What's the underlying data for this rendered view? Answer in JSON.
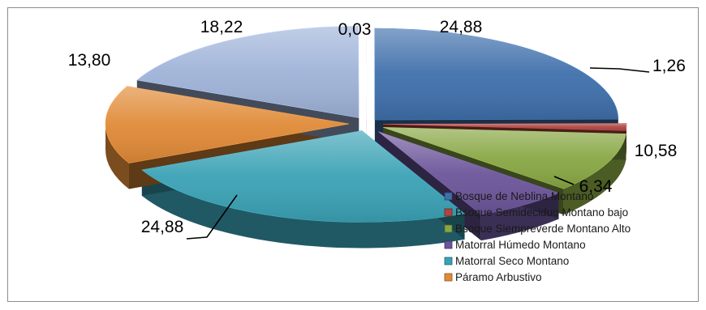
{
  "chart_data": {
    "type": "pie",
    "style": "exploded 3d pie",
    "title": "",
    "legend_position": "bottom-right",
    "series": [
      {
        "name": "Bosque de Neblina Montano",
        "value": 24.88,
        "label": "24,88",
        "color": "#3f6fab"
      },
      {
        "name": "Bsoque Semideciduo Montano bajo",
        "value": 1.26,
        "label": "1,26",
        "color": "#ad4541"
      },
      {
        "name": "Bsoque Siempreverde Montano Alto",
        "value": 10.58,
        "label": "10,58",
        "color": "#88a744"
      },
      {
        "name": "Matorral Húmedo Montano",
        "value": 6.34,
        "label": "6,34",
        "color": "#6c559a"
      },
      {
        "name": "Matorral Seco Montano",
        "value": 24.88,
        "label": "24,88",
        "color": "#3aa2b5"
      },
      {
        "name": "Páramo Arbustivo",
        "value": 13.8,
        "label": "13,80",
        "color": "#e08a37"
      },
      {
        "name": "",
        "value": 18.22,
        "label": "18,22",
        "color": "#9fb3d8"
      },
      {
        "name": "",
        "value": 0.03,
        "label": "0,03",
        "color": "#d9d9d9"
      }
    ]
  }
}
